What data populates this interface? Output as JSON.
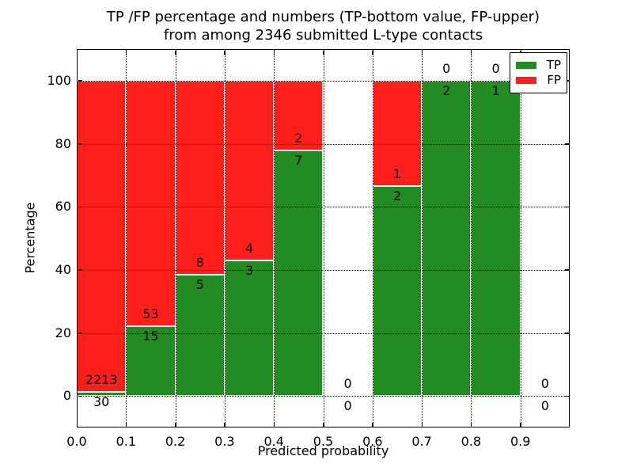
{
  "chart_data": {
    "type": "bar",
    "stacked": true,
    "percentage_stack": true,
    "title_lines": [
      "TP /FP percentage and numbers (TP-bottom value, FP-upper)",
      "from among 2346 submitted L-type contacts"
    ],
    "xlabel": "Predicted probability",
    "ylabel": "Percentage",
    "x_tick_labels": [
      "0.0",
      "0.1",
      "0.2",
      "0.3",
      "0.4",
      "0.5",
      "0.6",
      "0.7",
      "0.8",
      "0.9"
    ],
    "y_tick_values": [
      0,
      20,
      40,
      60,
      80,
      100
    ],
    "y_tick_labels": [
      "0",
      "20",
      "40",
      "60",
      "80",
      "100"
    ],
    "xlim": [
      0.0,
      1.0
    ],
    "ylim": [
      -10,
      110
    ],
    "bin_width": 0.1,
    "grid": "dotted",
    "total_contacts": 2346,
    "categories": [
      "0.0-0.1",
      "0.1-0.2",
      "0.2-0.3",
      "0.3-0.4",
      "0.4-0.5",
      "0.5-0.6",
      "0.6-0.7",
      "0.7-0.8",
      "0.8-0.9",
      "0.9-1.0"
    ],
    "series": [
      {
        "name": "TP",
        "color": "#228B22",
        "values": [
          30,
          15,
          5,
          3,
          7,
          0,
          2,
          2,
          1,
          0
        ]
      },
      {
        "name": "FP",
        "color": "#ff1f1a",
        "values": [
          2213,
          53,
          8,
          4,
          2,
          0,
          1,
          0,
          0,
          0
        ]
      }
    ],
    "tp_percent": [
      1.34,
      22.06,
      38.46,
      42.86,
      77.78,
      null,
      66.67,
      100,
      100,
      null
    ],
    "legend_position": "upper right"
  }
}
